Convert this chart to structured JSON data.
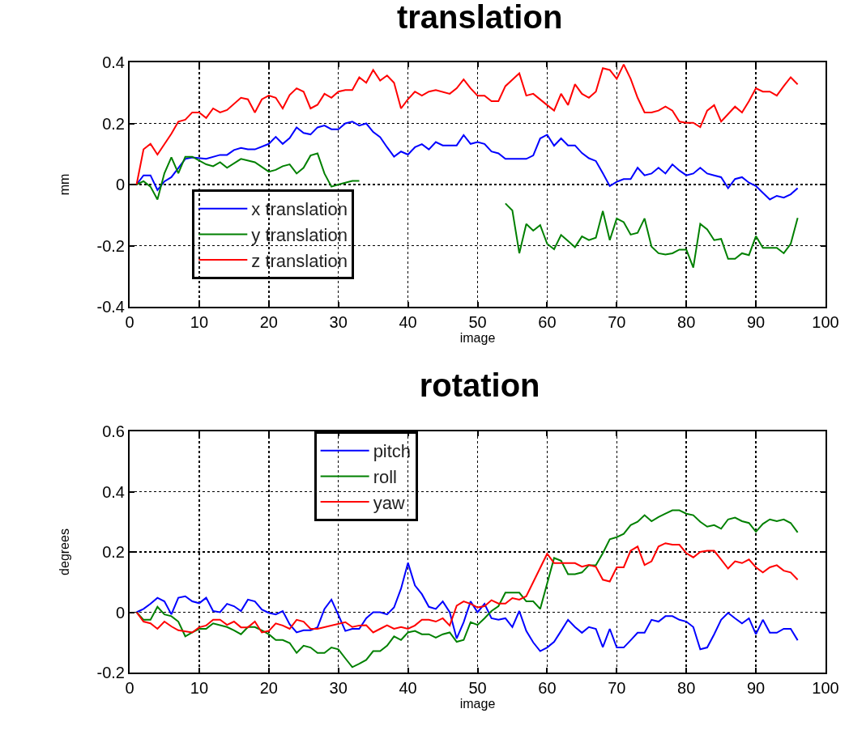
{
  "chart_data": [
    {
      "type": "line",
      "title": "translation",
      "xlabel": "image",
      "ylabel": "mm",
      "xlim": [
        0,
        100
      ],
      "xticks": [
        0,
        10,
        20,
        30,
        40,
        50,
        60,
        70,
        80,
        90,
        100
      ],
      "ylim": [
        -0.4,
        0.4
      ],
      "yticks": [
        -0.4,
        -0.2,
        0,
        0.2,
        0.4
      ],
      "grid": true,
      "legend": "bottom left",
      "line_style": "solid",
      "marker": "none",
      "series": [
        {
          "name": "x translation",
          "color": "#0000ff",
          "x": [
            1,
            2,
            3,
            4,
            5,
            6,
            8,
            9,
            11,
            13,
            14,
            15,
            16,
            17,
            18,
            20,
            21,
            22,
            23,
            24,
            25,
            26,
            27,
            28,
            29,
            30,
            31,
            32,
            33,
            34,
            35,
            36,
            37,
            38,
            39,
            40,
            41,
            42,
            43,
            44,
            45,
            47,
            48,
            49,
            50,
            51,
            52,
            53,
            54,
            57,
            58,
            59,
            60,
            61,
            62,
            63,
            64,
            65,
            66,
            67,
            68,
            69,
            70,
            71,
            72,
            73,
            74,
            75,
            76,
            77,
            78,
            79,
            80,
            81,
            82,
            83,
            84,
            85,
            86,
            87,
            88,
            89,
            90,
            91,
            92,
            93,
            94,
            95,
            96
          ],
          "values": [
            0,
            0.03,
            0.03,
            -0.018,
            0.01,
            0.024,
            0.084,
            0.089,
            0.084,
            0.097,
            0.097,
            0.113,
            0.12,
            0.115,
            0.115,
            0.133,
            0.156,
            0.133,
            0.152,
            0.187,
            0.169,
            0.164,
            0.187,
            0.193,
            0.181,
            0.181,
            0.2,
            0.206,
            0.193,
            0.2,
            0.172,
            0.155,
            0.122,
            0.091,
            0.108,
            0.098,
            0.122,
            0.132,
            0.115,
            0.139,
            0.128,
            0.128,
            0.162,
            0.133,
            0.139,
            0.133,
            0.108,
            0.102,
            0.084,
            0.084,
            0.095,
            0.151,
            0.163,
            0.127,
            0.151,
            0.128,
            0.128,
            0.103,
            0.086,
            0.077,
            0.037,
            -0.005,
            0.009,
            0.018,
            0.018,
            0.055,
            0.03,
            0.036,
            0.055,
            0.036,
            0.066,
            0.046,
            0.03,
            0.036,
            0.055,
            0.036,
            0.03,
            0.024,
            -0.012,
            0.018,
            0.024,
            0.006,
            -0.005,
            -0.027,
            -0.049,
            -0.037,
            -0.043,
            -0.032,
            -0.012
          ]
        },
        {
          "name": "y translation",
          "color": "#008000",
          "x": [
            1,
            2,
            3,
            4,
            5,
            6,
            7,
            8,
            9,
            11,
            12,
            13,
            14,
            16,
            18,
            20,
            21,
            22,
            23,
            24,
            25,
            26,
            27,
            28,
            29,
            30,
            31,
            32,
            33,
            34,
            53,
            54,
            55,
            56,
            57,
            58,
            59,
            60,
            61,
            62,
            63,
            64,
            65,
            66,
            67,
            68,
            69,
            70,
            71,
            72,
            73,
            74,
            75,
            76,
            77,
            78,
            79,
            80,
            81,
            82,
            83,
            84,
            85,
            86,
            87,
            88,
            89,
            90,
            91,
            93,
            94,
            95,
            96
          ],
          "values": [
            0,
            0.011,
            -0.007,
            -0.049,
            0.037,
            0.089,
            0.037,
            0.091,
            0.091,
            0.066,
            0.06,
            0.073,
            0.055,
            0.084,
            0.073,
            0.042,
            0.048,
            0.06,
            0.066,
            0.036,
            0.055,
            0.095,
            0.102,
            0.036,
            -0.007,
            0,
            0.006,
            0.012,
            0.012,
            null,
            null,
            -0.062,
            -0.085,
            -0.225,
            -0.129,
            -0.151,
            -0.133,
            -0.194,
            -0.212,
            -0.165,
            -0.185,
            -0.205,
            -0.17,
            -0.182,
            -0.174,
            -0.087,
            -0.182,
            -0.111,
            -0.123,
            -0.164,
            -0.158,
            -0.111,
            -0.203,
            -0.225,
            -0.229,
            -0.225,
            -0.213,
            -0.213,
            -0.272,
            -0.129,
            -0.147,
            -0.182,
            -0.178,
            -0.243,
            -0.243,
            -0.225,
            -0.231,
            -0.169,
            -0.207,
            -0.207,
            -0.225,
            -0.194,
            -0.109
          ]
        },
        {
          "name": "z translation",
          "color": "#ff0000",
          "x": [
            1,
            2,
            3,
            4,
            6,
            7,
            8,
            9,
            10,
            11,
            12,
            13,
            14,
            16,
            17,
            18,
            19,
            20,
            21,
            22,
            23,
            24,
            25,
            26,
            27,
            28,
            29,
            30,
            31,
            32,
            33,
            34,
            35,
            36,
            37,
            38,
            39,
            40,
            41,
            42,
            43,
            44,
            46,
            47,
            48,
            49,
            50,
            51,
            52,
            53,
            54,
            56,
            57,
            58,
            60,
            61,
            62,
            63,
            64,
            65,
            66,
            67,
            68,
            69,
            70,
            71,
            72,
            73,
            74,
            75,
            76,
            77,
            78,
            79,
            80,
            81,
            82,
            83,
            84,
            85,
            87,
            88,
            89,
            90,
            91,
            92,
            93,
            94,
            95,
            96
          ],
          "values": [
            0,
            0.115,
            0.133,
            0.098,
            0.166,
            0.206,
            0.212,
            0.236,
            0.236,
            0.218,
            0.249,
            0.236,
            0.244,
            0.284,
            0.279,
            0.236,
            0.279,
            0.291,
            0.284,
            0.249,
            0.293,
            0.315,
            0.304,
            0.249,
            0.261,
            0.297,
            0.284,
            0.304,
            0.309,
            0.309,
            0.351,
            0.333,
            0.375,
            0.34,
            0.357,
            0.333,
            0.249,
            0.279,
            0.304,
            0.291,
            0.304,
            0.309,
            0.297,
            0.315,
            0.344,
            0.315,
            0.291,
            0.291,
            0.273,
            0.273,
            0.322,
            0.364,
            0.291,
            0.297,
            0.26,
            0.242,
            0.297,
            0.26,
            0.328,
            0.297,
            0.284,
            0.304,
            0.381,
            0.375,
            0.346,
            0.393,
            0.346,
            0.284,
            0.236,
            0.236,
            0.242,
            0.255,
            0.242,
            0.206,
            0.202,
            0.202,
            0.188,
            0.242,
            0.26,
            0.206,
            0.255,
            0.236,
            0.273,
            0.315,
            0.304,
            0.304,
            0.291,
            0.322,
            0.351,
            0.328
          ]
        }
      ]
    },
    {
      "type": "line",
      "title": "rotation",
      "xlabel": "image",
      "ylabel": "degrees",
      "xlim": [
        0,
        100
      ],
      "xticks": [
        0,
        10,
        20,
        30,
        40,
        50,
        60,
        70,
        80,
        90,
        100
      ],
      "ylim": [
        -0.2,
        0.6
      ],
      "yticks": [
        -0.2,
        0,
        0.2,
        0.4,
        0.6
      ],
      "grid": true,
      "legend": "top",
      "line_style": "solid",
      "marker": "none",
      "series": [
        {
          "name": "pitch",
          "color": "#0000ff",
          "x": [
            1,
            2,
            3,
            4,
            5,
            6,
            7,
            8,
            9,
            10,
            11,
            12,
            13,
            14,
            15,
            16,
            17,
            18,
            19,
            20,
            21,
            22,
            23,
            24,
            25,
            26,
            27,
            28,
            29,
            30,
            31,
            32,
            33,
            34,
            35,
            36,
            37,
            38,
            39,
            40,
            41,
            42,
            43,
            44,
            45,
            46,
            47,
            48,
            49,
            50,
            51,
            52,
            53,
            54,
            55,
            56,
            57,
            58,
            59,
            60,
            61,
            62,
            63,
            64,
            65,
            66,
            67,
            68,
            69,
            70,
            71,
            72,
            73,
            74,
            75,
            76,
            77,
            78,
            79,
            80,
            81,
            82,
            83,
            84,
            85,
            86,
            87,
            88,
            89,
            90,
            91,
            92,
            93,
            94,
            95,
            96
          ],
          "values": [
            0,
            0.011,
            0.028,
            0.048,
            0.036,
            -0.007,
            0.048,
            0.053,
            0.036,
            0.03,
            0.048,
            0.004,
            0,
            0.028,
            0.02,
            0.004,
            0.042,
            0.036,
            0.009,
            -0.002,
            -0.007,
            0.004,
            -0.04,
            -0.067,
            -0.06,
            -0.06,
            -0.05,
            0.011,
            0.042,
            -0.009,
            -0.062,
            -0.055,
            -0.055,
            -0.02,
            0,
            0,
            -0.007,
            0.016,
            0.078,
            0.164,
            0.089,
            0.06,
            0.018,
            0.011,
            0.036,
            0,
            -0.087,
            -0.033,
            0.036,
            0,
            0.028,
            -0.02,
            -0.025,
            -0.02,
            -0.049,
            0.004,
            -0.062,
            -0.1,
            -0.129,
            -0.117,
            -0.098,
            -0.062,
            -0.025,
            -0.049,
            -0.068,
            -0.049,
            -0.055,
            -0.116,
            -0.055,
            -0.117,
            -0.117,
            -0.093,
            -0.068,
            -0.068,
            -0.025,
            -0.031,
            -0.013,
            -0.013,
            -0.025,
            -0.031,
            -0.049,
            -0.123,
            -0.117,
            -0.073,
            -0.025,
            -0.002,
            -0.02,
            -0.037,
            -0.02,
            -0.073,
            -0.025,
            -0.068,
            -0.068,
            -0.055,
            -0.055,
            -0.093
          ]
        },
        {
          "name": "roll",
          "color": "#008000",
          "x": [
            1,
            2,
            3,
            4,
            5,
            6,
            7,
            8,
            9,
            10,
            11,
            12,
            14,
            15,
            16,
            17,
            18,
            19,
            20,
            21,
            22,
            23,
            24,
            25,
            26,
            27,
            28,
            29,
            30,
            31,
            32,
            33,
            34,
            35,
            36,
            37,
            38,
            39,
            40,
            41,
            42,
            43,
            44,
            45,
            46,
            47,
            48,
            49,
            50,
            51,
            52,
            53,
            54,
            56,
            57,
            58,
            59,
            61,
            62,
            63,
            64,
            65,
            66,
            67,
            68,
            69,
            70,
            71,
            72,
            73,
            74,
            75,
            76,
            77,
            78,
            79,
            80,
            81,
            82,
            83,
            84,
            85,
            86,
            87,
            88,
            89,
            90,
            91,
            92,
            93,
            94,
            95,
            96
          ],
          "values": [
            0,
            -0.025,
            -0.025,
            0.018,
            -0.007,
            -0.013,
            -0.031,
            -0.08,
            -0.067,
            -0.055,
            -0.055,
            -0.037,
            -0.049,
            -0.06,
            -0.073,
            -0.049,
            -0.049,
            -0.06,
            -0.073,
            -0.092,
            -0.092,
            -0.102,
            -0.135,
            -0.111,
            -0.117,
            -0.135,
            -0.135,
            -0.117,
            -0.123,
            -0.153,
            -0.182,
            -0.171,
            -0.158,
            -0.129,
            -0.129,
            -0.111,
            -0.08,
            -0.092,
            -0.067,
            -0.062,
            -0.073,
            -0.073,
            -0.084,
            -0.073,
            -0.067,
            -0.098,
            -0.092,
            -0.033,
            -0.042,
            -0.02,
            0.004,
            0.02,
            0.065,
            0.065,
            0.036,
            0.036,
            0.011,
            0.18,
            0.171,
            0.126,
            0.126,
            0.132,
            0.156,
            0.156,
            0.196,
            0.242,
            0.249,
            0.26,
            0.289,
            0.3,
            0.322,
            0.302,
            0.316,
            0.327,
            0.338,
            0.338,
            0.327,
            0.322,
            0.3,
            0.284,
            0.289,
            0.277,
            0.308,
            0.314,
            0.302,
            0.296,
            0.267,
            0.293,
            0.308,
            0.302,
            0.308,
            0.296,
            0.265
          ]
        },
        {
          "name": "yaw",
          "color": "#ff0000",
          "x": [
            1,
            2,
            3,
            4,
            5,
            6,
            7,
            9,
            10,
            11,
            12,
            13,
            14,
            15,
            16,
            17,
            18,
            19,
            20,
            21,
            22,
            23,
            24,
            25,
            26,
            27,
            31,
            32,
            33,
            34,
            35,
            36,
            37,
            38,
            39,
            40,
            41,
            42,
            43,
            44,
            45,
            46,
            47,
            48,
            49,
            50,
            51,
            52,
            53,
            54,
            55,
            56,
            57,
            60,
            61,
            64,
            65,
            66,
            67,
            68,
            69,
            70,
            71,
            72,
            73,
            74,
            75,
            76,
            77,
            78,
            79,
            80,
            81,
            82,
            83,
            84,
            85,
            86,
            87,
            88,
            89,
            90,
            91,
            92,
            93,
            94,
            95,
            96
          ],
          "values": [
            0,
            -0.031,
            -0.037,
            -0.055,
            -0.031,
            -0.047,
            -0.06,
            -0.067,
            -0.05,
            -0.044,
            -0.025,
            -0.025,
            -0.042,
            -0.031,
            -0.05,
            -0.05,
            -0.031,
            -0.067,
            -0.062,
            -0.037,
            -0.044,
            -0.055,
            -0.025,
            -0.031,
            -0.055,
            -0.055,
            -0.033,
            -0.049,
            -0.044,
            -0.043,
            -0.067,
            -0.055,
            -0.043,
            -0.055,
            -0.049,
            -0.055,
            -0.044,
            -0.025,
            -0.025,
            -0.031,
            -0.02,
            -0.044,
            0.022,
            0.036,
            0.028,
            0.016,
            0.02,
            0.04,
            0.029,
            0.029,
            0.047,
            0.042,
            0.053,
            0.194,
            0.163,
            0.163,
            0.151,
            0.157,
            0.151,
            0.108,
            0.102,
            0.149,
            0.149,
            0.204,
            0.218,
            0.157,
            0.169,
            0.218,
            0.229,
            0.224,
            0.224,
            0.196,
            0.182,
            0.2,
            0.204,
            0.204,
            0.175,
            0.145,
            0.169,
            0.163,
            0.175,
            0.149,
            0.132,
            0.149,
            0.156,
            0.138,
            0.132,
            0.108
          ]
        }
      ]
    }
  ]
}
